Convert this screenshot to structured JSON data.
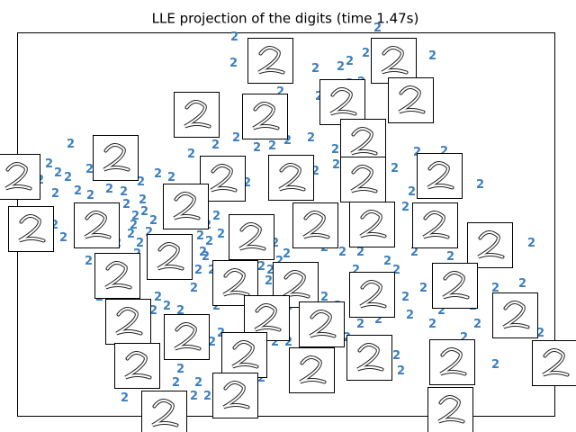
{
  "chart_data": {
    "type": "scatter",
    "title": "LLE projection of the digits (time 1.47s)",
    "marker_text": "2",
    "color": "#3a7fc0",
    "xlim": [
      19,
      616
    ],
    "ylim": [
      462,
      36
    ],
    "x": [
      260,
      419,
      259,
      350,
      378,
      388,
      406,
      480,
      311,
      354,
      388,
      401,
      239,
      212,
      262,
      285,
      302,
      319,
      345,
      372,
      373,
      78,
      99,
      54,
      64,
      75,
      44,
      61,
      86,
      100,
      121,
      137,
      156,
      175,
      190,
      274,
      438,
      463,
      493,
      533,
      457,
      450,
      140,
      150,
      160,
      170,
      145,
      130,
      155,
      165,
      230,
      245,
      225,
      220,
      235,
      215,
      240,
      200,
      175,
      170,
      185,
      295,
      305,
      310,
      300,
      360,
      380,
      395,
      430,
      440,
      460,
      470,
      450,
      455,
      480,
      515,
      525,
      550,
      580,
      590,
      600,
      440,
      445,
      360,
      375,
      400,
      420,
      385,
      305,
      320,
      220,
      230,
      215,
      138,
      200,
      195,
      110,
      112,
      98,
      70,
      55,
      550,
      530,
      490,
      500,
      400,
      320,
      275,
      245,
      235,
      290,
      350,
      420,
      432,
      400,
      60,
      148,
      158,
      152,
      232,
      228,
      240,
      222,
      290,
      298,
      318
    ],
    "y": [
      41,
      31,
      70,
      76,
      74,
      68,
      59,
      62,
      102,
      107,
      93,
      91,
      161,
      171,
      153,
      164,
      162,
      156,
      153,
      166,
      183,
      160,
      188,
      182,
      192,
      197,
      200,
      215,
      212,
      217,
      210,
      213,
      202,
      193,
      197,
      203,
      187,
      169,
      168,
      205,
      213,
      230,
      227,
      240,
      235,
      245,
      260,
      270,
      270,
      258,
      250,
      260,
      280,
      300,
      300,
      320,
      340,
      345,
      330,
      345,
      340,
      250,
      270,
      290,
      300,
      275,
      280,
      300,
      290,
      300,
      280,
      320,
      330,
      350,
      360,
      375,
      340,
      320,
      315,
      270,
      370,
      395,
      412,
      330,
      340,
      360,
      355,
      375,
      380,
      380,
      425,
      440,
      440,
      442,
      410,
      425,
      330,
      300,
      290,
      264,
      265,
      405,
      360,
      345,
      285,
      345,
      340,
      330,
      370,
      380,
      420,
      190,
      220,
      264,
      280,
      250,
      250,
      222,
      282,
      268,
      285,
      240,
      262,
      296,
      312,
      282
    ],
    "thumbnails": {
      "x": [
        300,
        437,
        218,
        294,
        380,
        456,
        403,
        128,
        19,
        247,
        323,
        403,
        488,
        206,
        34,
        107,
        279,
        350,
        413,
        483,
        544,
        188,
        130,
        261,
        328,
        413,
        505,
        142,
        296,
        357,
        207,
        572,
        271,
        152,
        346,
        410,
        502,
        616,
        261,
        182,
        500
      ],
      "y": [
        67,
        67,
        127,
        129,
        113,
        111,
        157,
        175,
        196,
        198,
        197,
        199,
        195,
        229,
        254,
        250,
        263,
        250,
        249,
        250,
        272,
        285,
        306,
        314,
        316,
        327,
        317,
        357,
        353,
        360,
        374,
        350,
        394,
        406,
        411,
        397,
        402,
        403,
        439,
        459,
        455
      ]
    }
  }
}
